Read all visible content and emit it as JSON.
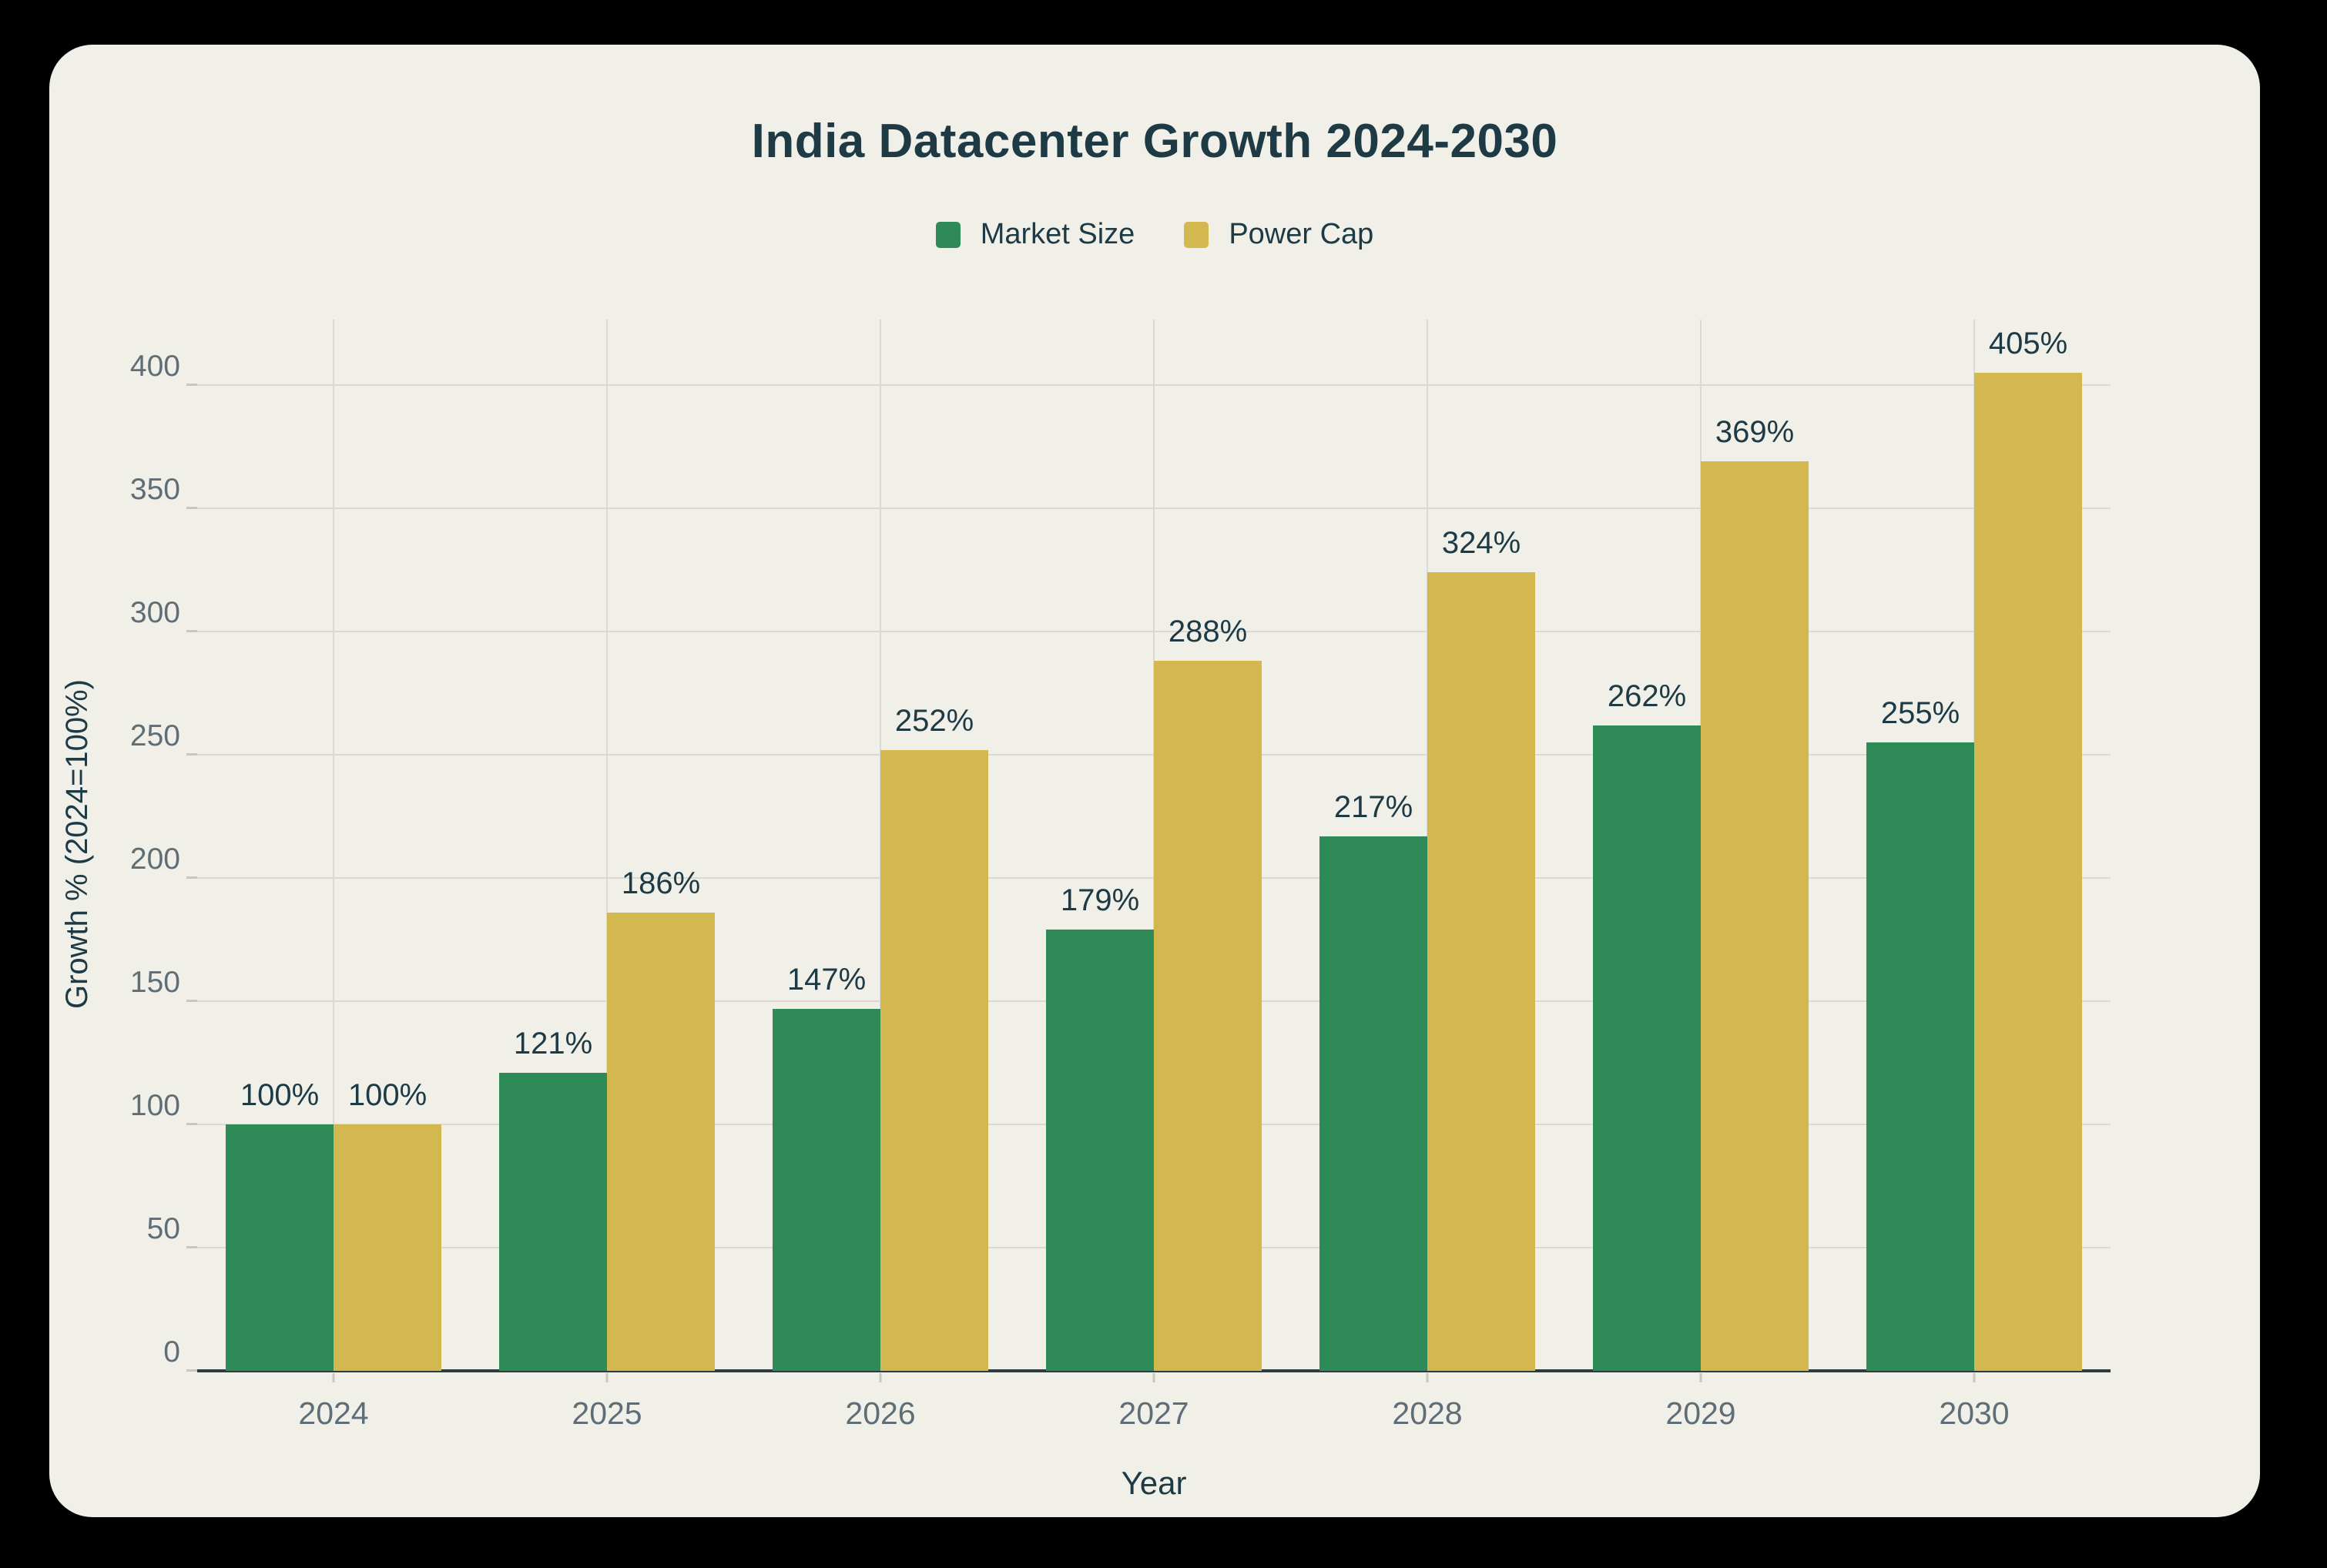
{
  "window": {
    "outer_background": "#000000",
    "card_background": "#f0f0e9"
  },
  "title": "India Datacenter Growth 2024-2030",
  "legend": {
    "items": [
      {
        "label": "Market Size",
        "color": "#2e8b57"
      },
      {
        "label": "Power Cap",
        "color": "#d2b84e"
      }
    ]
  },
  "chart_data": {
    "type": "bar",
    "title": "India Datacenter Growth 2024-2030",
    "categories": [
      "2024",
      "2025",
      "2026",
      "2027",
      "2028",
      "2029",
      "2030"
    ],
    "series": [
      {
        "name": "Market Size",
        "color": "#2e8b57",
        "values": [
          100,
          121,
          147,
          179,
          217,
          262,
          255
        ]
      },
      {
        "name": "Power Cap",
        "color": "#d2b84e",
        "values": [
          100,
          186,
          252,
          288,
          324,
          369,
          405
        ]
      }
    ],
    "value_suffix": "%",
    "xlabel": "Year",
    "ylabel": "Growth % (2024=100%)",
    "ylim": [
      0,
      425
    ],
    "yticks": [
      0,
      50,
      100,
      150,
      200,
      250,
      300,
      350,
      400
    ],
    "grid": true,
    "legend_position": "top",
    "text_colors": {
      "title": "#1d3a45",
      "value_labels": "#1d3a45",
      "tick_labels": "#5f6e76",
      "gridline": "#dbd9d1",
      "axis_line": "#2d3b43"
    }
  }
}
